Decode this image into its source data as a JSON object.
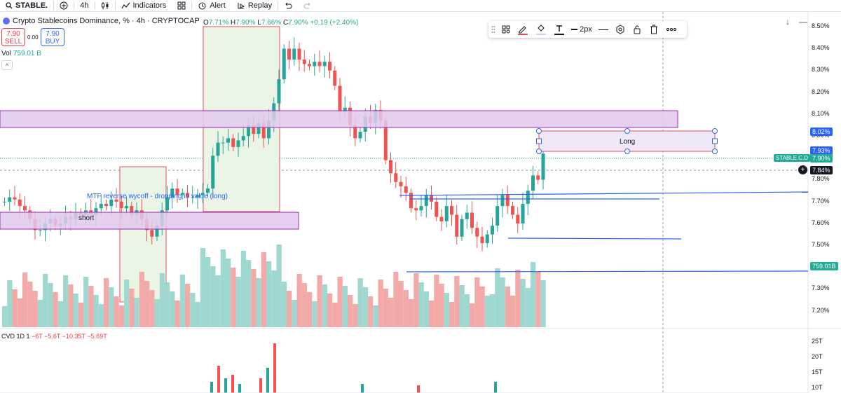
{
  "topbar": {
    "symbol": "STABLE.",
    "interval": "4h",
    "indicators_label": "Indicators",
    "alert_label": "Alert",
    "replay_label": "Replay"
  },
  "legend": {
    "title": "Crypto Stablecoins Dominance, % · 4h · CRYPTOCAP",
    "ohlc": {
      "o_label": "O",
      "o": "7.71%",
      "h_label": "H",
      "h": "7.90%",
      "l_label": "L",
      "l": "7.66%",
      "c_label": "C",
      "c": "7.90%",
      "change": "+0.19 (+2.40%)"
    }
  },
  "trade": {
    "sell_price": "7.90",
    "sell_label": "SELL",
    "spread": "0.00",
    "buy_price": "7.90",
    "buy_label": "BUY"
  },
  "volume": {
    "label": "Vol",
    "value": "759.01 B"
  },
  "collapse_label": "^",
  "drawing_toolbar": {
    "width_label": "2px"
  },
  "price_axis": {
    "labels": [
      "8.50%",
      "8.40%",
      "8.30%",
      "8.20%",
      "8.10%",
      "8.00%",
      "7.90%",
      "7.80%",
      "7.70%",
      "7.60%",
      "7.50%",
      "7.40%",
      "7.30%",
      "7.20%"
    ],
    "tags": {
      "long_top": "8.02%",
      "long_bottom": "7.93%",
      "symbol_tag": "STABLE.C.D",
      "last_price": "7.90%",
      "crosshair": "7.84%",
      "volume_tag": "759.01B"
    }
  },
  "annotations": {
    "wyckoff_text": "MTF reverse wycoff - dropping in value (long)",
    "short_label": "short",
    "long_label": "Long"
  },
  "cvd": {
    "label": "CVD 1D 1",
    "values": [
      "−6T",
      "−5.6T",
      "−10.35T",
      "−5.69T"
    ],
    "axis": [
      "25T",
      "20T",
      "15T",
      "10T"
    ]
  },
  "colors": {
    "up": "#26a69a",
    "down": "#ef5350",
    "zone_fill": "#e1c9ec",
    "zone_border": "#9c27b0",
    "line_blue": "#2962ff",
    "box_green": "#e8f5e9"
  },
  "chart_data": {
    "type": "candlestick",
    "title": "Crypto Stablecoins Dominance, % · 4h · CRYPTOCAP",
    "ylabel": "%",
    "ylim": [
      7.15,
      8.53
    ],
    "last_close": 7.9,
    "grid": false
  }
}
